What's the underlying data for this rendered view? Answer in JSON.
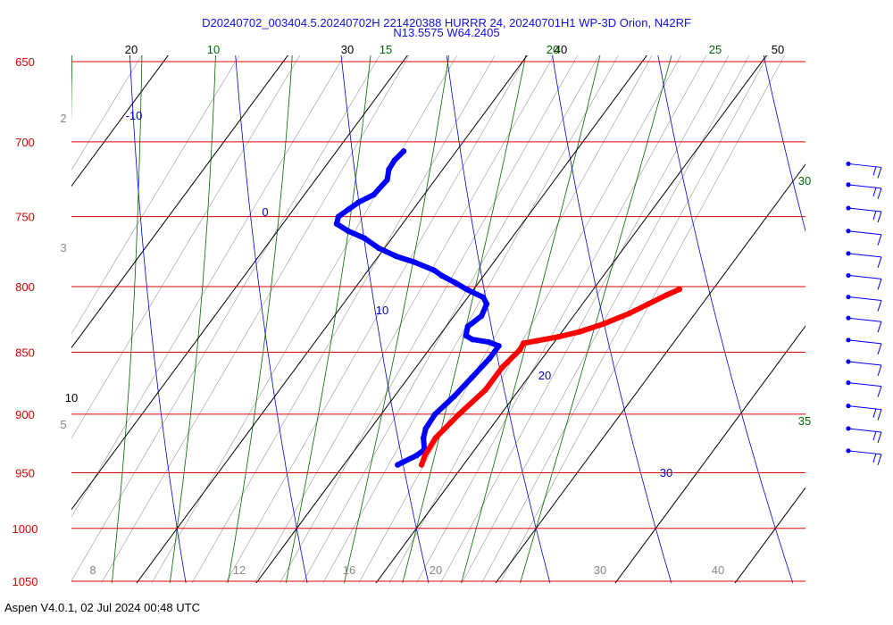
{
  "header": {
    "title_line1": "D20240702_003404.5.20240702H 221420388 HURRR 24, 20240701H1 WP-3D Orion, N42RF",
    "title_line2": "N13.5575 W64.2405"
  },
  "footer": {
    "text": "Aspen V4.0.1, 02 Jul 2024  00:48 UTC"
  },
  "colors": {
    "isobar": "#dd0000",
    "isotherm": "#000000",
    "dry_adiabat": "#0000cc",
    "moist_adiabat": "#006600",
    "mixing_ratio": "#999999",
    "temperature": "#ff0000",
    "dewpoint": "#0000ff",
    "wind_barbs": "#0000ff"
  },
  "chart_data": {
    "type": "line",
    "chart_kind": "skew-T log-p diagram",
    "pressure_range_hpa": [
      650,
      1050
    ],
    "pressure_ticks": [
      "650",
      "700",
      "750",
      "800",
      "850",
      "900",
      "950",
      "1000",
      "1050"
    ],
    "isotherm_labels": [
      "10",
      "20",
      "30",
      "40",
      "50"
    ],
    "dry_adiabat_labels": [
      "-10",
      "0",
      "10",
      "20",
      "30"
    ],
    "moist_adiabat_labels": [
      "10",
      "15",
      "20",
      "25",
      "30",
      "35"
    ],
    "mixing_ratio_labels_bottom": [
      "8",
      "12",
      "16",
      "20",
      "30",
      "40"
    ],
    "mixing_ratio_labels_left": [
      "2",
      "3",
      "5"
    ],
    "temperature_profile": {
      "pressure_hpa": [
        943,
        935,
        920,
        900,
        880,
        862,
        848,
        843,
        841,
        838,
        834,
        828,
        820,
        813,
        806,
        802
      ],
      "temp_c": [
        26.5,
        26.2,
        26.0,
        26.5,
        27.2,
        27.2,
        27.6,
        27.5,
        28.5,
        30.0,
        31.5,
        33.0,
        34.5,
        35.5,
        36.5,
        37.2
      ]
    },
    "dewpoint_profile": {
      "pressure_hpa": [
        943,
        935,
        930,
        920,
        912,
        900,
        885,
        870,
        855,
        845,
        842,
        840,
        837,
        830,
        822,
        813,
        808,
        802,
        797,
        792,
        788,
        782,
        778,
        772,
        765,
        760,
        755,
        750,
        745,
        740,
        735,
        725,
        718,
        712,
        706
      ],
      "dewpoint_c": [
        24.5,
        25.5,
        25.8,
        25.0,
        24.6,
        24.5,
        25.0,
        25.3,
        25.6,
        25.6,
        24.5,
        23.0,
        22.2,
        21.8,
        22.3,
        22.0,
        21.3,
        19.4,
        18.0,
        16.5,
        15.5,
        13.3,
        11.5,
        9.5,
        7.7,
        5.9,
        4.5,
        4.2,
        4.6,
        5.0,
        5.8,
        6.0,
        5.5,
        5.4,
        5.6
      ]
    },
    "wind_barbs": {
      "pressure_hpa": [
        719,
        733,
        749,
        765,
        781,
        797,
        813,
        829,
        846,
        863,
        880,
        899,
        918,
        937
      ]
    }
  }
}
